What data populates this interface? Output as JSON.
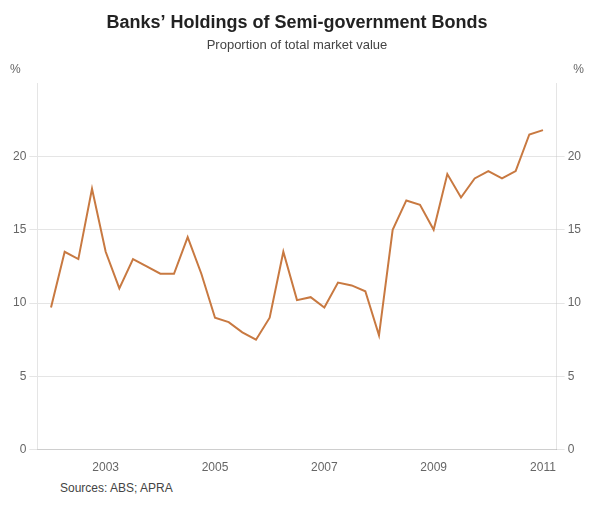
{
  "chart_data": {
    "type": "line",
    "title": "Banks’ Holdings of Semi-government Bonds",
    "subtitle": "Proportion of total market value",
    "source": "Sources: ABS; APRA",
    "ylabel": "%",
    "y2label": "%",
    "color": "#C87941",
    "x": [
      2002.0,
      2002.25,
      2002.5,
      2002.75,
      2003.0,
      2003.25,
      2003.5,
      2003.75,
      2004.0,
      2004.25,
      2004.5,
      2004.75,
      2005.0,
      2005.25,
      2005.5,
      2005.75,
      2006.0,
      2006.25,
      2006.5,
      2006.75,
      2007.0,
      2007.25,
      2007.5,
      2007.75,
      2008.0,
      2008.25,
      2008.5,
      2008.75,
      2009.0,
      2009.25,
      2009.5,
      2009.75,
      2010.0,
      2010.25,
      2010.5,
      2010.75,
      2011.0
    ],
    "values": [
      9.7,
      13.5,
      13.0,
      17.8,
      13.5,
      11.0,
      13.0,
      12.5,
      12.0,
      12.0,
      14.5,
      12.0,
      9.0,
      8.7,
      8.0,
      7.5,
      9.0,
      13.5,
      10.2,
      10.4,
      9.7,
      11.4,
      11.2,
      10.8,
      7.8,
      15.0,
      17.0,
      16.7,
      15.0,
      18.8,
      17.2,
      18.5,
      19.0,
      18.5,
      19.0,
      21.5,
      21.8
    ],
    "xlim": [
      2001.75,
      2011.25
    ],
    "xticks": [
      2003,
      2005,
      2007,
      2009,
      2011
    ],
    "ylim": [
      0,
      25
    ],
    "yticks": [
      0,
      5,
      10,
      15,
      20
    ],
    "y2lim": [
      0,
      25
    ],
    "y2ticks": [
      0,
      5,
      10,
      15,
      20
    ],
    "grid": true
  }
}
